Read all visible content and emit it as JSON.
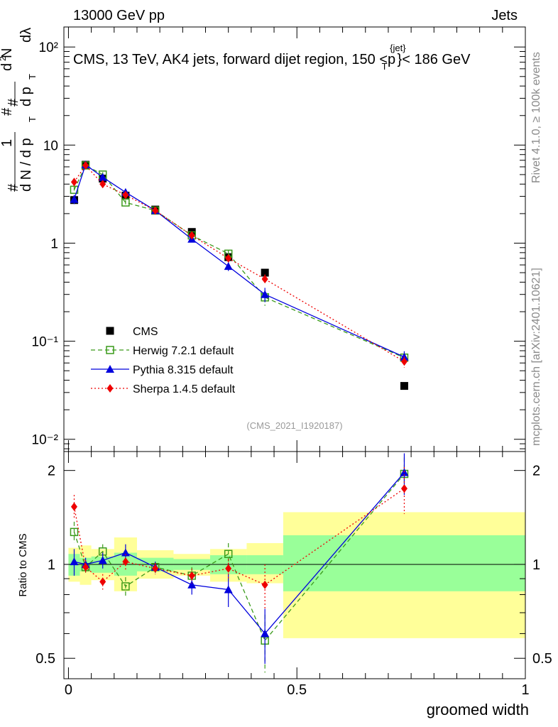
{
  "header": {
    "left": "13000 GeV pp",
    "right": "Jets"
  },
  "side_labels": {
    "rivet": "Rivet 4.1.0, ≥ 100k events",
    "mcplots": "mcplots.cern.ch [arXiv:2401.10621]"
  },
  "colors": {
    "cms": "#000000",
    "herwig": "#3a9a1a",
    "pythia": "#0000dd",
    "sherpa": "#ee0000",
    "band_inner": "#99ff99",
    "band_outer": "#ffff99"
  },
  "chart_data": [
    {
      "name": "main",
      "type": "scatter",
      "title": "CMS, 13 TeV, AK4 jets, forward dijet region, 150 <p",
      "title_sup": "{jet}",
      "title_sub": "T",
      "title_end": "}< 186 GeV",
      "ylabel": "1/N dN/dp_T d²N/dp_T dλ",
      "yscale": "log",
      "ylim": [
        0.0075,
        160
      ],
      "xlim": [
        -0.01,
        1.0
      ],
      "ytick_labels": [
        "10⁻²",
        "10⁻¹",
        "1",
        "10",
        "10²"
      ],
      "ytick_values": [
        0.01,
        0.1,
        1,
        10,
        100
      ],
      "watermark": "(CMS_2021_I1920187)",
      "bins": [
        [
          0.0,
          0.025
        ],
        [
          0.025,
          0.05
        ],
        [
          0.05,
          0.1
        ],
        [
          0.1,
          0.15
        ],
        [
          0.15,
          0.23
        ],
        [
          0.23,
          0.31
        ],
        [
          0.31,
          0.39
        ],
        [
          0.39,
          0.47
        ],
        [
          0.47,
          1.0
        ]
      ],
      "series": [
        {
          "name": "CMS",
          "style": "data",
          "x": [
            0.0125,
            0.0375,
            0.075,
            0.125,
            0.19,
            0.27,
            0.35,
            0.43,
            0.735
          ],
          "y": [
            2.75,
            6.3,
            4.55,
            3.05,
            2.2,
            1.3,
            0.72,
            0.5,
            0.035
          ],
          "err": [
            0.2,
            0.3,
            0.25,
            0.2,
            0.1,
            0.07,
            0.05,
            0.04,
            0.003
          ]
        },
        {
          "name": "Herwig 7.2.1 default",
          "style": "herwig",
          "x": [
            0.0125,
            0.0375,
            0.075,
            0.125,
            0.19,
            0.27,
            0.35,
            0.43,
            0.735
          ],
          "y": [
            3.5,
            6.2,
            5.0,
            2.6,
            2.15,
            1.2,
            0.78,
            0.28,
            0.068
          ],
          "err": [
            0.3,
            0.3,
            0.3,
            0.15,
            0.1,
            0.08,
            0.06,
            0.05,
            0.01
          ]
        },
        {
          "name": "Pythia 8.315 default",
          "style": "pythia",
          "x": [
            0.0125,
            0.0375,
            0.075,
            0.125,
            0.19,
            0.27,
            0.35,
            0.43,
            0.735
          ],
          "y": [
            2.8,
            6.3,
            4.7,
            3.3,
            2.15,
            1.1,
            0.58,
            0.3,
            0.069
          ],
          "err": [
            0.3,
            0.3,
            0.3,
            0.2,
            0.1,
            0.07,
            0.06,
            0.05,
            0.01
          ]
        },
        {
          "name": "Sherpa 1.4.5 default",
          "style": "sherpa",
          "x": [
            0.0125,
            0.0375,
            0.075,
            0.125,
            0.19,
            0.27,
            0.35,
            0.43,
            0.735
          ],
          "y": [
            4.2,
            6.2,
            4.0,
            3.1,
            2.15,
            1.2,
            0.7,
            0.43,
            0.062
          ],
          "err": [
            0.4,
            0.3,
            0.25,
            0.2,
            0.1,
            0.07,
            0.05,
            0.05,
            0.008
          ]
        }
      ]
    },
    {
      "name": "ratio",
      "type": "scatter",
      "ylabel": "Ratio to CMS",
      "yscale": "log",
      "ylim": [
        0.43,
        2.3
      ],
      "xlim": [
        -0.01,
        1.0
      ],
      "xlabel": "groomed width",
      "xtick_labels": [
        "0",
        "0.5",
        "1"
      ],
      "xtick_values": [
        0,
        0.5,
        1
      ],
      "ytick_labels": [
        "0.5",
        "1",
        "2"
      ],
      "ytick_values": [
        0.5,
        1,
        2
      ],
      "bands": {
        "inner": [
          [
            0.92,
            1.08
          ],
          [
            0.95,
            1.05
          ],
          [
            0.94,
            1.06
          ],
          [
            0.92,
            1.09
          ],
          [
            0.95,
            1.05
          ],
          [
            0.96,
            1.04
          ],
          [
            0.93,
            1.07
          ],
          [
            0.93,
            1.07
          ],
          [
            0.82,
            1.24
          ]
        ],
        "outer": [
          [
            0.88,
            1.13
          ],
          [
            0.86,
            1.15
          ],
          [
            0.89,
            1.12
          ],
          [
            0.82,
            1.22
          ],
          [
            0.9,
            1.11
          ],
          [
            0.92,
            1.08
          ],
          [
            0.88,
            1.12
          ],
          [
            0.87,
            1.17
          ],
          [
            0.58,
            1.47
          ]
        ]
      },
      "series": [
        {
          "name": "Herwig 7.2.1 default",
          "style": "herwig",
          "x": [
            0.0125,
            0.0375,
            0.075,
            0.125,
            0.19,
            0.27,
            0.35,
            0.43,
            0.735
          ],
          "y": [
            1.27,
            0.98,
            1.1,
            0.85,
            0.98,
            0.92,
            1.08,
            0.57,
            1.95
          ],
          "err": [
            0.1,
            0.04,
            0.06,
            0.06,
            0.04,
            0.06,
            0.09,
            0.12,
            0.25
          ]
        },
        {
          "name": "Pythia 8.315 default",
          "style": "pythia",
          "x": [
            0.0125,
            0.0375,
            0.075,
            0.125,
            0.19,
            0.27,
            0.35,
            0.43,
            0.735
          ],
          "y": [
            1.02,
            1.0,
            1.03,
            1.09,
            0.98,
            0.86,
            0.83,
            0.6,
            1.97
          ],
          "err": [
            0.1,
            0.05,
            0.06,
            0.07,
            0.04,
            0.06,
            0.1,
            0.12,
            0.3
          ]
        },
        {
          "name": "Sherpa 1.4.5 default",
          "style": "sherpa",
          "x": [
            0.0125,
            0.0375,
            0.075,
            0.125,
            0.19,
            0.27,
            0.35,
            0.43,
            0.735
          ],
          "y": [
            1.53,
            0.98,
            0.88,
            1.02,
            0.97,
            0.92,
            0.97,
            0.86,
            1.75
          ],
          "err": [
            0.14,
            0.05,
            0.05,
            0.06,
            0.04,
            0.05,
            0.07,
            0.14,
            0.3
          ]
        }
      ]
    }
  ]
}
